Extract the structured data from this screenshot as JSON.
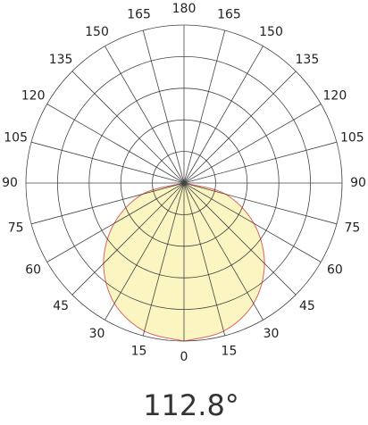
{
  "chart_data": {
    "type": "polar",
    "angle_labels": [
      0,
      15,
      30,
      45,
      60,
      75,
      90,
      105,
      120,
      135,
      150,
      165,
      180
    ],
    "rlim": [
      0,
      5
    ],
    "rgrid": [
      1,
      2,
      3,
      4,
      5
    ],
    "x": [
      0,
      15,
      30,
      45,
      60,
      75,
      90
    ],
    "values": [
      5.0,
      4.85,
      4.4,
      3.6,
      2.55,
      1.35,
      0
    ],
    "color": "#e06060",
    "fill": "#fbf5c2",
    "annotation": "112.8°"
  }
}
